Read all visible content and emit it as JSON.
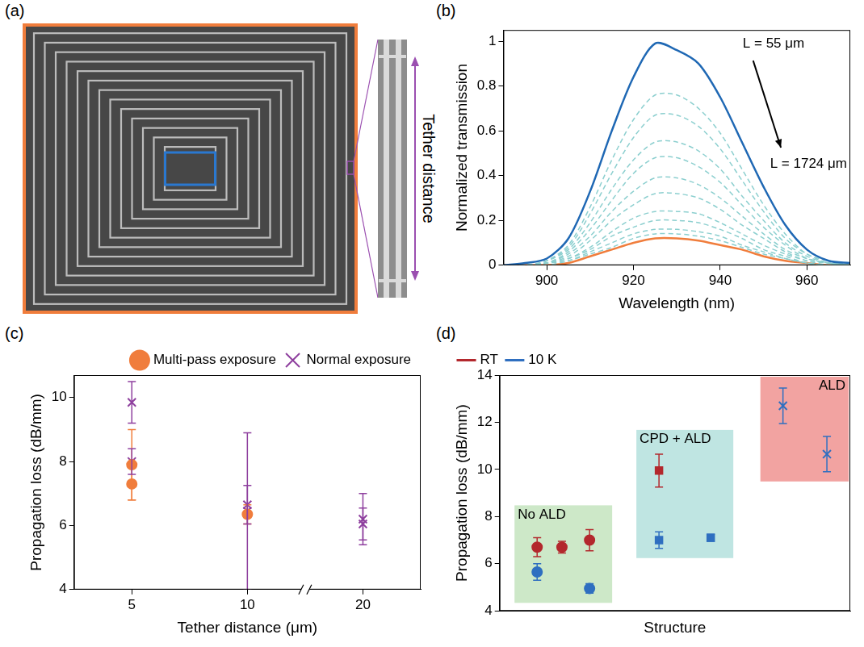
{
  "diagram": {
    "panel": "(a)",
    "annotation": "Tether distance"
  },
  "chart_data": [
    {
      "panel": "(b)",
      "type": "line",
      "x_label": "Wavelength (nm)",
      "y_label": "Normalized transmission",
      "x": [
        890,
        895,
        900,
        905,
        910,
        915,
        920,
        925,
        930,
        935,
        940,
        945,
        950,
        955,
        960,
        965,
        970
      ],
      "series": [
        {
          "color": "#1f68b4",
          "line_style": "solid",
          "values": [
            0,
            0.01,
            0.03,
            0.12,
            0.33,
            0.6,
            0.84,
            0.99,
            0.96,
            0.9,
            0.75,
            0.55,
            0.35,
            0.18,
            0.07,
            0.02,
            0.01
          ]
        },
        {
          "color": "#8ccfcf",
          "line_style": "dashed",
          "values": [
            0,
            0,
            0.02,
            0.09,
            0.26,
            0.47,
            0.65,
            0.76,
            0.76,
            0.7,
            0.59,
            0.43,
            0.27,
            0.14,
            0.05,
            0.02,
            0
          ]
        },
        {
          "color": "#8ccfcf",
          "line_style": "dashed",
          "values": [
            0,
            0,
            0.02,
            0.08,
            0.23,
            0.41,
            0.57,
            0.67,
            0.67,
            0.62,
            0.52,
            0.38,
            0.24,
            0.12,
            0.05,
            0.01,
            0
          ]
        },
        {
          "color": "#8ccfcf",
          "line_style": "dashed",
          "values": [
            0,
            0,
            0.02,
            0.07,
            0.19,
            0.34,
            0.47,
            0.55,
            0.55,
            0.51,
            0.43,
            0.31,
            0.2,
            0.1,
            0.04,
            0.01,
            0
          ]
        },
        {
          "color": "#8ccfcf",
          "line_style": "dashed",
          "values": [
            0,
            0,
            0.01,
            0.06,
            0.16,
            0.29,
            0.41,
            0.48,
            0.48,
            0.44,
            0.37,
            0.27,
            0.17,
            0.09,
            0.03,
            0.01,
            0
          ]
        },
        {
          "color": "#8ccfcf",
          "line_style": "dashed",
          "values": [
            0,
            0,
            0.01,
            0.05,
            0.13,
            0.24,
            0.33,
            0.39,
            0.39,
            0.36,
            0.3,
            0.22,
            0.14,
            0.07,
            0.03,
            0.01,
            0
          ]
        },
        {
          "color": "#8ccfcf",
          "line_style": "dashed",
          "values": [
            0,
            0,
            0.01,
            0.04,
            0.11,
            0.2,
            0.27,
            0.32,
            0.32,
            0.3,
            0.25,
            0.18,
            0.12,
            0.06,
            0.02,
            0.01,
            0
          ]
        },
        {
          "color": "#8ccfcf",
          "line_style": "dashed",
          "values": [
            0,
            0,
            0.01,
            0.03,
            0.08,
            0.15,
            0.21,
            0.24,
            0.24,
            0.23,
            0.19,
            0.14,
            0.09,
            0.05,
            0.02,
            0,
            0
          ]
        },
        {
          "color": "#8ccfcf",
          "line_style": "dashed",
          "values": [
            0,
            0,
            0.01,
            0.03,
            0.07,
            0.13,
            0.17,
            0.2,
            0.2,
            0.19,
            0.16,
            0.12,
            0.07,
            0.04,
            0.01,
            0,
            0
          ]
        },
        {
          "color": "#8ccfcf",
          "line_style": "dashed",
          "values": [
            0,
            0,
            0.01,
            0.02,
            0.06,
            0.1,
            0.14,
            0.16,
            0.16,
            0.15,
            0.13,
            0.09,
            0.06,
            0.03,
            0.01,
            0,
            0
          ]
        },
        {
          "color": "#8ccfcf",
          "line_style": "dashed",
          "values": [
            0,
            0,
            0,
            0.02,
            0.05,
            0.08,
            0.12,
            0.14,
            0.14,
            0.13,
            0.11,
            0.08,
            0.05,
            0.03,
            0.01,
            0,
            0
          ]
        },
        {
          "color": "#f07d3c",
          "line_style": "solid",
          "values": [
            0,
            0,
            0,
            0.01,
            0.04,
            0.07,
            0.1,
            0.12,
            0.12,
            0.11,
            0.09,
            0.07,
            0.04,
            0.02,
            0.01,
            0,
            0
          ]
        }
      ],
      "xlim": [
        890,
        970
      ],
      "xticks": [
        900,
        920,
        940,
        960
      ],
      "ylim": [
        0,
        1.05
      ],
      "yticks": [
        0,
        0.2,
        0.4,
        0.6,
        0.8,
        1
      ],
      "grid": false,
      "annotations": [
        "L = 55 μm",
        "L = 1724 μm"
      ]
    },
    {
      "panel": "(c)",
      "type": "scatter",
      "x_label": "Tether distance (μm)",
      "y_label": "Propagation loss (dB/mm)",
      "categories": [
        "5",
        "10",
        "20"
      ],
      "series": [
        {
          "name": "Multi-pass exposure",
          "color": "#f07d3c",
          "marker": "circle",
          "x": [
            "5",
            "5",
            "10"
          ],
          "values": [
            7.3,
            7.9,
            6.35
          ],
          "errors": [
            0.5,
            1.1,
            0.3
          ]
        },
        {
          "name": "Normal exposure",
          "color": "#8e3f9e",
          "marker": "x",
          "x": [
            "5",
            "5",
            "10",
            "10",
            "20",
            "20"
          ],
          "values": [
            9.85,
            8.0,
            6.65,
            6.45,
            6.2,
            6.05
          ],
          "errors": [
            0.65,
            0.4,
            0.6,
            2.45,
            0.8,
            0.5
          ]
        }
      ],
      "ylim": [
        4,
        10.7
      ],
      "yticks": [
        4,
        6,
        8,
        10
      ],
      "grid": false,
      "legend": "top right"
    },
    {
      "panel": "(d)",
      "type": "scatter",
      "x_label": "Structure",
      "y_label": "Propagation loss (dB/mm)",
      "xlim": [
        0,
        9.9
      ],
      "xticks": [],
      "ylim": [
        4,
        14
      ],
      "yticks": [
        4,
        6,
        8,
        10,
        12,
        14
      ],
      "grid": false,
      "legend": "top left",
      "tick_labels": "y",
      "series": [
        {
          "name": "RT",
          "color": "#b3282d",
          "marker": "line"
        },
        {
          "name": "10 K",
          "color": "#2f6fc0",
          "marker": "line"
        }
      ],
      "groups": [
        {
          "name": "No ALD",
          "color": "#cde8c8",
          "marker": "circle",
          "points": [
            {
              "series": "RT",
              "x": [
                1.06,
                1.76,
                2.54
              ],
              "values": [
                6.7,
                6.7,
                7.0
              ],
              "errors": [
                0.4,
                0.25,
                0.45
              ]
            },
            {
              "series": "10 K",
              "x": [
                1.06,
                2.54
              ],
              "values": [
                5.65,
                4.95
              ],
              "errors": [
                0.35,
                0.2
              ]
            }
          ]
        },
        {
          "name": "CPD + ALD",
          "color": "#bfe5e2",
          "marker": "square",
          "points": [
            {
              "series": "RT",
              "x": [
                4.5
              ],
              "values": [
                9.95
              ],
              "errors": [
                0.7
              ]
            },
            {
              "series": "10 K",
              "x": [
                4.5,
                5.96
              ],
              "values": [
                7.0,
                7.1
              ],
              "errors": [
                0.35,
                0.15
              ]
            }
          ]
        },
        {
          "name": "ALD",
          "color": "#f2a3a1",
          "marker": "x",
          "points": [
            {
              "series": "10 K",
              "x": [
                8.0,
                9.24
              ],
              "values": [
                12.7,
                10.65
              ],
              "errors": [
                0.75,
                0.75
              ]
            }
          ]
        }
      ]
    }
  ]
}
